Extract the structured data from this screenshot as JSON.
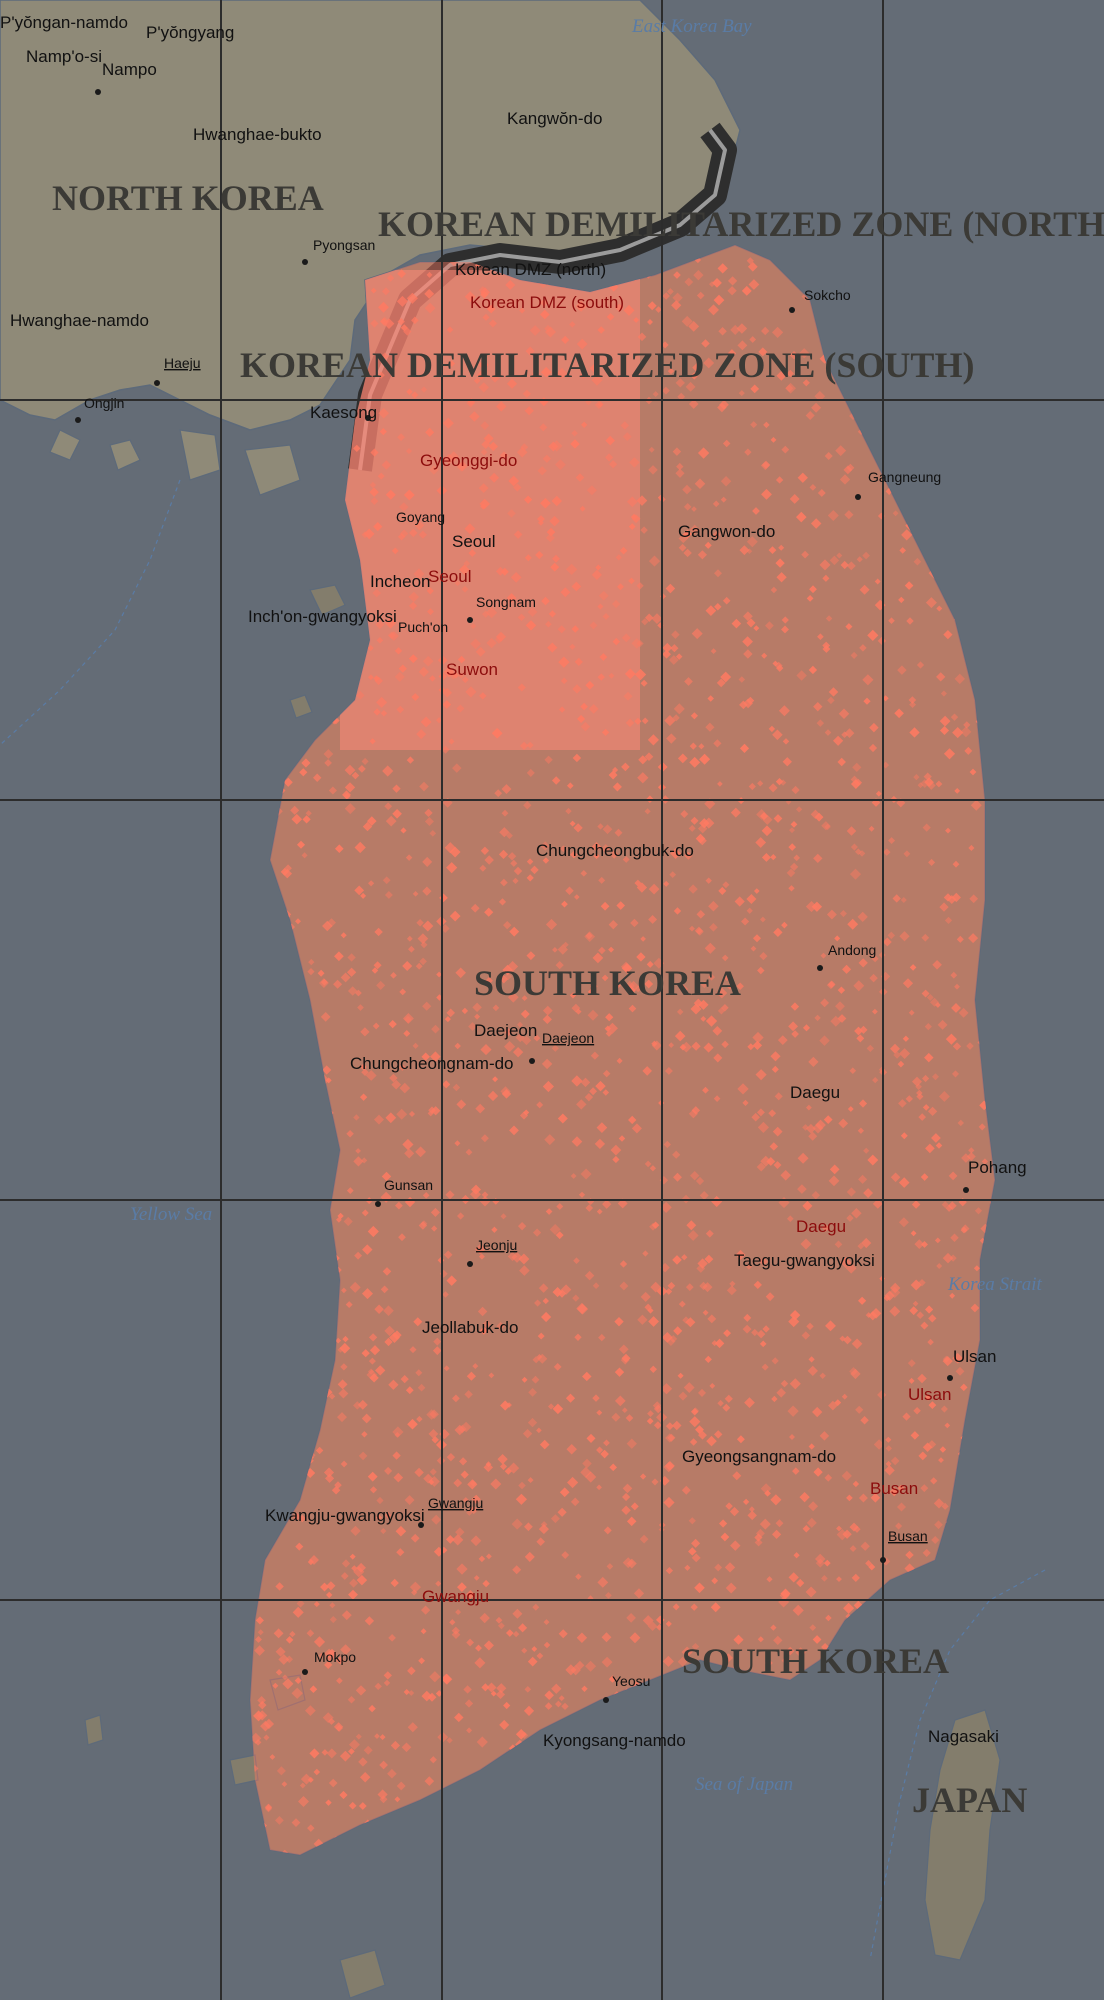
{
  "map": {
    "colors": {
      "sea": "#646c76",
      "land": "#837d6c",
      "north_land": "#8f8a78",
      "grid": "#2c2c2c",
      "dmz_band": "#2e2e2e",
      "density_dense": "#ff7f6a",
      "density_points": "#ff7a62"
    },
    "countries": {
      "north_korea": "NORTH KOREA",
      "south_korea_1": "SOUTH KOREA",
      "south_korea_2": "SOUTH KOREA",
      "japan": "JAPAN"
    },
    "zones": {
      "dmz_north": "KOREAN DEMILITARIZED ZONE (NORTH)",
      "dmz_south": "KOREAN DEMILITARIZED ZONE (SOUTH)",
      "dmz_north_small": "Korean DMZ (north)",
      "dmz_south_small": "Korean DMZ (south)"
    },
    "water": {
      "east_korea_bay": "East Korea Bay",
      "yellow_sea": "Yellow Sea",
      "korea_strait": "Korea Strait",
      "sea_of_japan": "Sea of Japan"
    },
    "places": {
      "pyongan_namdo": "P'yŏngan-namdo",
      "pyongyang": "P'yŏngyang",
      "nampo_si": "Namp'o-si",
      "nampo": "Nampo",
      "hwanghae_bukto": "Hwanghae-bukto",
      "kangwon_do": "Kangwŏn-do",
      "pyongsan": "Pyongsan",
      "hwanghae_namdo": "Hwanghae-namdo",
      "haeju": "Haeju",
      "ongjin": "Ongjin",
      "kaesong": "Kaesong",
      "sokcho": "Sokcho",
      "gyeonggi_do": "Gyeonggi-do",
      "goyang": "Goyang",
      "seoul_1": "Seoul",
      "seoul_2": "Seoul",
      "incheon": "Incheon",
      "seongnam": "Songnam",
      "puchon": "Puch'on",
      "inchon_gwangyoksi": "Inch'on-gwangyoksi",
      "suwon": "Suwon",
      "gangneung": "Gangneung",
      "gangwon_do": "Gangwon-do",
      "chungcheongbuk_do": "Chungcheongbuk-do",
      "andong": "Andong",
      "daejeon_1": "Daejeon",
      "daejeon_2": "Daejeon",
      "chungcheongnam_do": "Chungcheongnam-do",
      "daegu_1": "Daegu",
      "pohang": "Pohang",
      "gunsan": "Gunsan",
      "jeonju": "Jeonju",
      "daegu_2": "Daegu",
      "taegu_gwangyoksi": "Taegu-gwangyoksi",
      "jeollabuk_do": "Jeollabuk-do",
      "ulsan_1": "Ulsan",
      "ulsan_2": "Ulsan",
      "gyeongsangnam_do": "Gyeongsangnam-do",
      "busan_1": "Busan",
      "busan_2": "Busan",
      "kwangju_gwangyoksi": "Kwangju-gwangyoksi",
      "gwangju_1": "Gwangju",
      "gwangju_2": "Gwangju",
      "mokpo": "Mokpo",
      "yeosu": "Yeosu",
      "kyongsang_namdo": "Kyongsang-namdo",
      "nagasaki": "Nagasaki"
    }
  }
}
